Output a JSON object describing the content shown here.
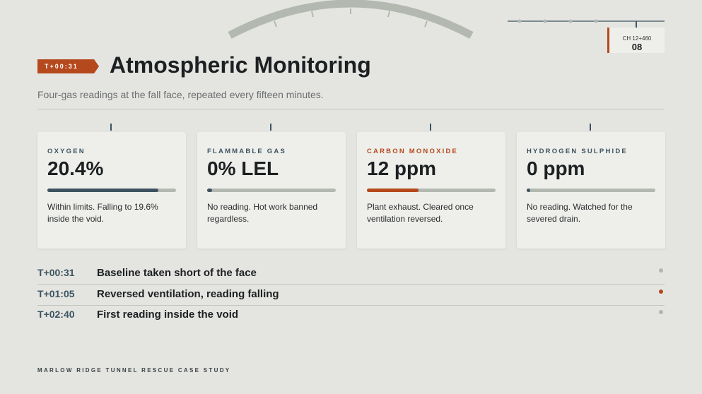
{
  "header": {
    "badge": "T+00:31",
    "title": "Atmospheric Monitoring",
    "subtitle": "Four-gas readings at the fall face, repeated every fifteen minutes.",
    "chainage": "CH 12+460",
    "slide_number": "08"
  },
  "cards": [
    {
      "label": "OXYGEN",
      "reading": "20.4%",
      "level": 86,
      "bar_color": "#3d5260",
      "label_color": "#3d5260",
      "note": "Within limits. Falling to 19.6% inside the void."
    },
    {
      "label": "FLAMMABLE GAS",
      "reading": "0% LEL",
      "level": 4,
      "bar_color": "#3d5260",
      "label_color": "#3d5260",
      "note": "No reading. Hot work banned regardless."
    },
    {
      "label": "CARBON MONOXIDE",
      "reading": "12 ppm",
      "level": 40,
      "bar_color": "#b5481c",
      "label_color": "#b5481c",
      "note": "Plant exhaust. Cleared once ventilation reversed."
    },
    {
      "label": "HYDROGEN SULPHIDE",
      "reading": "0 ppm",
      "level": 3,
      "bar_color": "#3d5260",
      "label_color": "#3d5260",
      "note": "No reading. Watched for the severed drain."
    }
  ],
  "timeline": [
    {
      "time": "T+00:31",
      "event": "Baseline taken short of the face",
      "dot_color": "#b3b5b0"
    },
    {
      "time": "T+01:05",
      "event": "Reversed ventilation, reading falling",
      "dot_color": "#b5481c"
    },
    {
      "time": "T+02:40",
      "event": "First reading inside the void",
      "dot_color": "#b3b5b0"
    }
  ],
  "footer": "MARLOW RIDGE TUNNEL RESCUE CASE STUDY"
}
